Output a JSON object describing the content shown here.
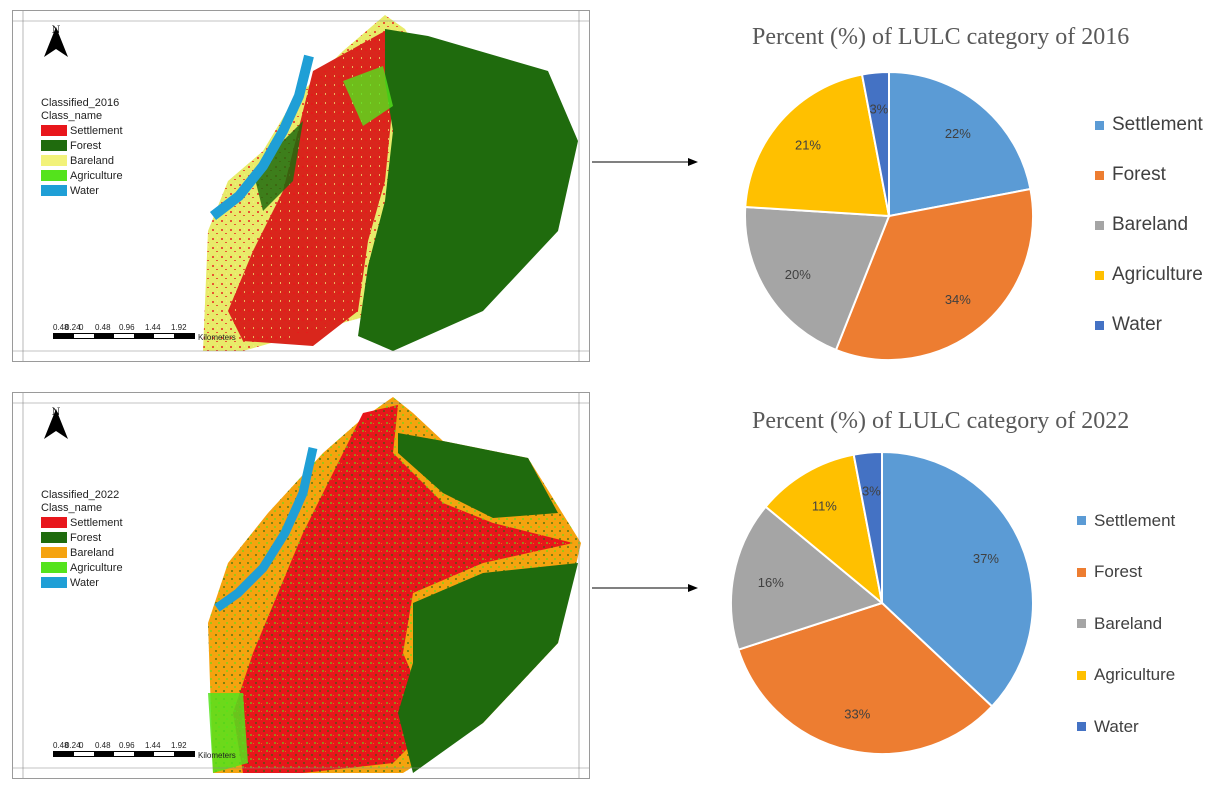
{
  "maps": [
    {
      "north_label": "N",
      "legend_title": "Classified_2016",
      "legend_subtitle": "Class_name",
      "classes": [
        {
          "label": "Settlement",
          "color": "#e8161b"
        },
        {
          "label": "Forest",
          "color": "#1f6b0d"
        },
        {
          "label": "Bareland",
          "color": "#f2f27a"
        },
        {
          "label": "Agriculture",
          "color": "#54e31c"
        },
        {
          "label": "Water",
          "color": "#1f9fd6"
        }
      ],
      "scale_ticks": [
        "0.48",
        "0.24",
        "0",
        "0.48",
        "0.96",
        "1.44",
        "1.92"
      ],
      "scale_unit": "Kilometers"
    },
    {
      "north_label": "N",
      "legend_title": "Classified_2022",
      "legend_subtitle": "Class_name",
      "classes": [
        {
          "label": "Settlement",
          "color": "#e8161b"
        },
        {
          "label": "Forest",
          "color": "#1f6b0d"
        },
        {
          "label": "Bareland",
          "color": "#f5a30f"
        },
        {
          "label": "Agriculture",
          "color": "#54e31c"
        },
        {
          "label": "Water",
          "color": "#1f9fd6"
        }
      ],
      "scale_ticks": [
        "0.48",
        "0.24",
        "0",
        "0.48",
        "0.96",
        "1.44",
        "1.92"
      ],
      "scale_unit": "Kilometers"
    }
  ],
  "chart_data": [
    {
      "type": "pie",
      "title": "Percent (%) of LULC category of 2016",
      "categories": [
        "Settlement",
        "Forest",
        "Bareland",
        "Agriculture",
        "Water"
      ],
      "values": [
        22,
        34,
        20,
        21,
        3
      ],
      "labels": [
        "22%",
        "34%",
        "20%",
        "21%",
        "3%"
      ],
      "colors": [
        "#5b9bd5",
        "#ed7d31",
        "#a5a5a5",
        "#ffc000",
        "#4472c4"
      ],
      "legend_position": "right"
    },
    {
      "type": "pie",
      "title": "Percent (%) of LULC category of 2022",
      "categories": [
        "Settlement",
        "Forest",
        "Bareland",
        "Agriculture",
        "Water"
      ],
      "values": [
        37,
        33,
        16,
        11,
        3
      ],
      "labels": [
        "37%",
        "33%",
        "16%",
        "11%",
        "3%"
      ],
      "colors": [
        "#5b9bd5",
        "#ed7d31",
        "#a5a5a5",
        "#ffc000",
        "#4472c4"
      ],
      "legend_position": "right"
    }
  ]
}
